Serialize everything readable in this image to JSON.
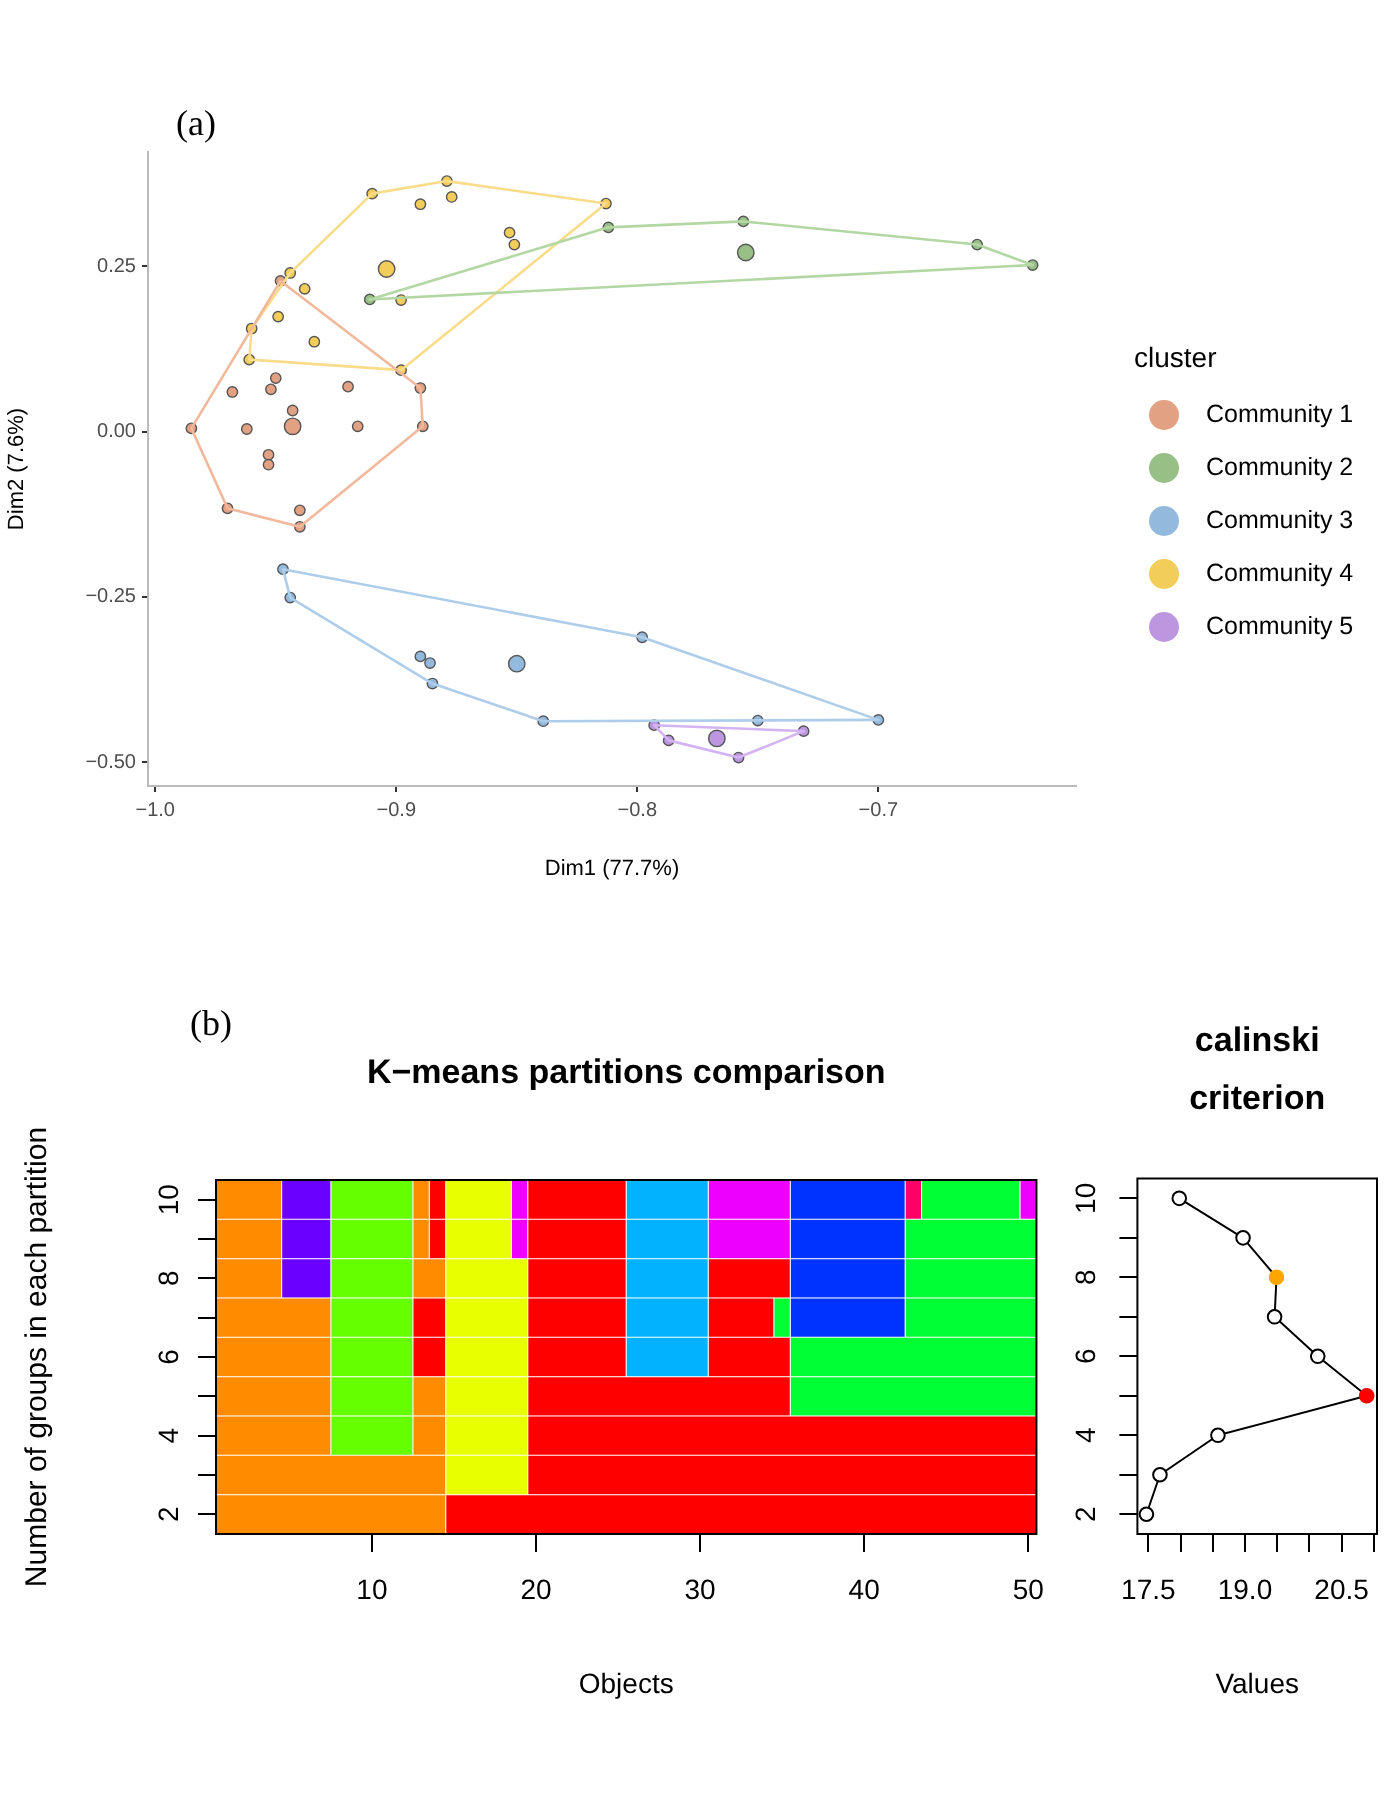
{
  "chart_data": [
    {
      "type": "scatter",
      "annotations": [
        "(a)"
      ],
      "xlabel": "Dim1 (77.7%)",
      "ylabel": "Dim2 (7.6%)",
      "legend_title": "cluster",
      "legend": "right",
      "marker": "circle",
      "xlim": [
        -1.003,
        -0.618
      ],
      "xticks": [
        {
          "value": -1.0,
          "label": "−1.0"
        },
        {
          "value": -0.9,
          "label": "−0.9"
        },
        {
          "value": -0.8,
          "label": "−0.8"
        },
        {
          "value": -0.7,
          "label": "−0.7"
        }
      ],
      "ylim": [
        -0.536,
        0.423
      ],
      "yticks": [
        {
          "value": -0.5,
          "label": "−0.50"
        },
        {
          "value": -0.25,
          "label": "−0.25"
        },
        {
          "value": 0,
          "label": "0.00"
        },
        {
          "value": 0.25,
          "label": "0.25"
        }
      ],
      "series": [
        {
          "name": "Community 1",
          "type": "bubble",
          "color": "#e3a183",
          "x": [
            -0.948,
            -0.89,
            -0.889,
            -0.94,
            -0.97,
            -0.985,
            -0.95,
            -0.952,
            -0.968,
            -0.92,
            -0.943,
            -0.962,
            -0.916,
            -0.953,
            -0.953,
            -0.94,
            -0.943
          ],
          "values": [
            0.228,
            0.066,
            0.008,
            -0.144,
            -0.116,
            0.005,
            0.081,
            0.064,
            0.06,
            0.068,
            0.032,
            0.004,
            0.008,
            -0.035,
            -0.05,
            -0.119,
            0.008
          ],
          "sizes": [
            0.4,
            0.4,
            0.4,
            0.4,
            0.4,
            0.4,
            0.4,
            0.4,
            0.4,
            0.4,
            0.4,
            0.4,
            0.4,
            0.4,
            0.4,
            0.4,
            1
          ]
        },
        {
          "name": "Community 2",
          "type": "bubble",
          "color": "#98bf86",
          "x": [
            -0.911,
            -0.812,
            -0.756,
            -0.659,
            -0.636,
            -0.755
          ],
          "values": [
            0.2,
            0.309,
            0.318,
            0.283,
            0.252,
            0.271
          ],
          "sizes": [
            0.4,
            0.4,
            0.4,
            0.4,
            0.4,
            1
          ]
        },
        {
          "name": "Community 3",
          "type": "bubble",
          "color": "#93b9dd",
          "x": [
            -0.947,
            -0.944,
            -0.89,
            -0.886,
            -0.885,
            -0.839,
            -0.798,
            -0.75,
            -0.7,
            -0.85
          ],
          "values": [
            -0.208,
            -0.251,
            -0.34,
            -0.35,
            -0.381,
            -0.438,
            -0.311,
            -0.437,
            -0.436,
            -0.351
          ],
          "sizes": [
            0.4,
            0.4,
            0.4,
            0.4,
            0.4,
            0.4,
            0.4,
            0.4,
            0.4,
            1
          ]
        },
        {
          "name": "Community 4",
          "type": "bubble",
          "color": "#f3cd5a",
          "x": [
            -0.91,
            -0.879,
            -0.813,
            -0.89,
            -0.877,
            -0.853,
            -0.851,
            -0.944,
            -0.938,
            -0.898,
            -0.949,
            -0.96,
            -0.934,
            -0.961,
            -0.898,
            -0.904
          ],
          "values": [
            0.36,
            0.379,
            0.345,
            0.344,
            0.355,
            0.301,
            0.283,
            0.24,
            0.216,
            0.199,
            0.174,
            0.156,
            0.136,
            0.109,
            0.093,
            0.246
          ],
          "sizes": [
            0.4,
            0.4,
            0.4,
            0.4,
            0.4,
            0.4,
            0.4,
            0.4,
            0.4,
            0.4,
            0.4,
            0.4,
            0.4,
            0.4,
            0.4,
            1
          ]
        },
        {
          "name": "Community 5",
          "type": "bubble",
          "color": "#bd96e0",
          "x": [
            -0.793,
            -0.787,
            -0.731,
            -0.758,
            -0.767
          ],
          "values": [
            -0.444,
            -0.467,
            -0.453,
            -0.493,
            -0.464
          ],
          "sizes": [
            0.4,
            0.4,
            0.4,
            0.4,
            1
          ]
        },
        {
          "type": "line",
          "marker": "none",
          "color": "#f2b89c",
          "x": [
            -0.985,
            -0.948,
            -0.89,
            -0.889
          ],
          "values": [
            0.005,
            0.228,
            0.066,
            0.008
          ]
        },
        {
          "type": "line",
          "marker": "none",
          "color": "#f2b89c",
          "x": [
            -0.985,
            -0.97,
            -0.94,
            -0.889
          ],
          "values": [
            0.005,
            -0.116,
            -0.144,
            0.008
          ]
        },
        {
          "type": "line",
          "marker": "none",
          "color": "#b3d7a2",
          "x": [
            -0.911,
            -0.812,
            -0.756,
            -0.659,
            -0.636
          ],
          "values": [
            0.2,
            0.309,
            0.318,
            0.283,
            0.252
          ]
        },
        {
          "type": "line",
          "marker": "none",
          "color": "#b3d7a2",
          "x": [
            -0.911,
            -0.636
          ],
          "values": [
            0.2,
            0.252
          ]
        },
        {
          "type": "line",
          "marker": "none",
          "color": "#aecdea",
          "x": [
            -0.947,
            -0.798,
            -0.7
          ],
          "values": [
            -0.208,
            -0.311,
            -0.436
          ]
        },
        {
          "type": "line",
          "marker": "none",
          "color": "#aecdea",
          "x": [
            -0.947,
            -0.944,
            -0.885,
            -0.839,
            -0.7
          ],
          "values": [
            -0.208,
            -0.251,
            -0.381,
            -0.438,
            -0.436
          ]
        },
        {
          "type": "line",
          "marker": "none",
          "color": "#f9dc8a",
          "x": [
            -0.961,
            -0.96,
            -0.944,
            -0.91,
            -0.879,
            -0.813
          ],
          "values": [
            0.109,
            0.156,
            0.24,
            0.36,
            0.379,
            0.345
          ]
        },
        {
          "type": "line",
          "marker": "none",
          "color": "#f9dc8a",
          "x": [
            -0.961,
            -0.898,
            -0.813
          ],
          "values": [
            0.109,
            0.093,
            0.345
          ]
        },
        {
          "type": "line",
          "marker": "none",
          "color": "#d4b3f2",
          "x": [
            -0.793,
            -0.731
          ],
          "values": [
            -0.444,
            -0.453
          ]
        },
        {
          "type": "line",
          "marker": "none",
          "color": "#d4b3f2",
          "x": [
            -0.793,
            -0.787,
            -0.758,
            -0.731
          ],
          "values": [
            -0.444,
            -0.467,
            -0.493,
            -0.453
          ]
        }
      ]
    },
    {
      "type": "bar",
      "orientation": "horizontal",
      "stacked": true,
      "annotations": [
        "(b)"
      ],
      "title": "K−means partitions comparison",
      "xlabel": "Objects",
      "ylabel": "Number of groups in each partition",
      "categories": [
        "10",
        null,
        "8",
        null,
        "6",
        null,
        "4",
        null,
        "2"
      ],
      "xlim": [
        0,
        50
      ],
      "xticks": [
        {
          "value": 9.5,
          "label": "10"
        },
        {
          "value": 19.5,
          "label": "20"
        },
        {
          "value": 29.5,
          "label": "30"
        },
        {
          "value": 39.5,
          "label": "40"
        },
        {
          "value": 49.5,
          "label": "50"
        }
      ],
      "series": [
        {
          "values": [
            4,
            4,
            4,
            7,
            7,
            7,
            7,
            14,
            14
          ],
          "colors": [
            "#ff8c00",
            "#ff8c00",
            "#ff8c00",
            "#ff8c00",
            "#ff8c00",
            "#ff8c00",
            "#ff8c00",
            "#ff8c00",
            "#ff8c00"
          ]
        },
        {
          "values": [
            3,
            3,
            3,
            5,
            5,
            5,
            5,
            5,
            36
          ],
          "colors": [
            "#6a00ff",
            "#6a00ff",
            "#6a00ff",
            "#66ff00",
            "#66ff00",
            "#66ff00",
            "#66ff00",
            "#e8ff00",
            "#ff0000"
          ]
        },
        {
          "values": [
            5,
            5,
            5,
            2,
            2,
            2,
            2,
            31,
            null
          ],
          "colors": [
            "#66ff00",
            "#66ff00",
            "#66ff00",
            "#ff0000",
            "#ff0000",
            "#ff8c00",
            "#ff8c00",
            "#ff0000",
            null
          ]
        },
        {
          "values": [
            1,
            1,
            2,
            5,
            5,
            5,
            5,
            null,
            null
          ],
          "colors": [
            "#ff8c00",
            "#ff8c00",
            "#ff8c00",
            "#e8ff00",
            "#e8ff00",
            "#e8ff00",
            "#e8ff00",
            null,
            null
          ]
        },
        {
          "values": [
            1,
            1,
            5,
            6,
            6,
            16,
            31,
            null,
            null
          ],
          "colors": [
            "#ff0000",
            "#ff0000",
            "#e8ff00",
            "#ff0000",
            "#ff0000",
            "#ff0000",
            "#ff0000",
            null,
            null
          ]
        },
        {
          "values": [
            4,
            4,
            6,
            5,
            5,
            15,
            null,
            null,
            null
          ],
          "colors": [
            "#e8ff00",
            "#e8ff00",
            "#ff0000",
            "#00b2ff",
            "#00b2ff",
            "#00ff33",
            null,
            null,
            null
          ]
        },
        {
          "values": [
            1,
            1,
            5,
            4,
            5,
            null,
            null,
            null,
            null
          ],
          "colors": [
            "#ee00ff",
            "#ee00ff",
            "#00b2ff",
            "#ff0000",
            "#ff0000",
            null,
            null,
            null,
            null
          ]
        },
        {
          "values": [
            6,
            6,
            5,
            1,
            15,
            null,
            null,
            null,
            null
          ],
          "colors": [
            "#ff0000",
            "#ff0000",
            "#ff0000",
            "#00ff33",
            "#00ff33",
            null,
            null,
            null,
            null
          ]
        },
        {
          "values": [
            5,
            5,
            7,
            7,
            null,
            null,
            null,
            null,
            null
          ],
          "colors": [
            "#00b2ff",
            "#00b2ff",
            "#0033ff",
            "#0033ff",
            null,
            null,
            null,
            null,
            null
          ]
        },
        {
          "values": [
            5,
            5,
            8,
            8,
            null,
            null,
            null,
            null,
            null
          ],
          "colors": [
            "#ee00ff",
            "#ee00ff",
            "#00ff33",
            "#00ff33",
            null,
            null,
            null,
            null,
            null
          ]
        },
        {
          "values": [
            7,
            7,
            null,
            null,
            null,
            null,
            null,
            null,
            null
          ],
          "colors": [
            "#0033ff",
            "#0033ff",
            null,
            null,
            null,
            null,
            null,
            null,
            null
          ]
        },
        {
          "values": [
            1,
            8,
            null,
            null,
            null,
            null,
            null,
            null,
            null
          ],
          "colors": [
            "#ff0066",
            "#00ff33",
            null,
            null,
            null,
            null,
            null,
            null,
            null
          ]
        },
        {
          "values": [
            6,
            null,
            null,
            null,
            null,
            null,
            null,
            null,
            null
          ],
          "colors": [
            "#00ff33",
            null,
            null,
            null,
            null,
            null,
            null,
            null,
            null
          ]
        },
        {
          "values": [
            1,
            null,
            null,
            null,
            null,
            null,
            null,
            null,
            null
          ],
          "colors": [
            "#ee00ff",
            null,
            null,
            null,
            null,
            null,
            null,
            null,
            null
          ]
        }
      ]
    },
    {
      "type": "line",
      "title": "calinski\ncriterion",
      "xlabel": "Values",
      "marker": "circle",
      "xlim": [
        17.33,
        21.05
      ],
      "xticks": [
        17.5,
        {
          "value": 18,
          "label": null
        },
        {
          "value": 18.5,
          "label": null
        },
        {
          "value": 19,
          "label": "19.0"
        },
        {
          "value": 19.5,
          "label": null
        },
        {
          "value": 20,
          "label": null
        },
        20.5,
        {
          "value": 21,
          "label": null
        }
      ],
      "ylim": [
        1.5,
        10.5
      ],
      "yticks": [
        2,
        {
          "value": 3,
          "label": null
        },
        4,
        {
          "value": 5,
          "label": null
        },
        6,
        {
          "value": 7,
          "label": null
        },
        8,
        {
          "value": 9,
          "label": null
        },
        10
      ],
      "series": [
        {
          "type": "line",
          "color": "#000000",
          "x": [
            17.47,
            17.68,
            18.58,
            20.89,
            20.13,
            19.46,
            19.49,
            18.97,
            17.98
          ],
          "values": [
            2,
            3,
            4,
            5,
            6,
            7,
            8,
            9,
            10
          ],
          "colors": [
            null,
            null,
            null,
            "#ff0000",
            null,
            null,
            "#ffa500",
            null,
            null
          ]
        }
      ]
    }
  ]
}
